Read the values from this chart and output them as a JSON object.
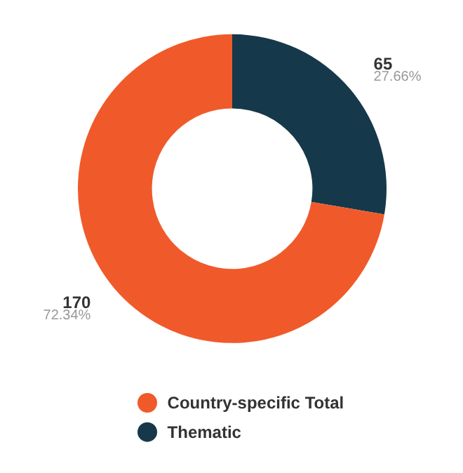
{
  "chart_data": {
    "type": "donut",
    "categories": [
      "Thematic",
      "Country-specific Total"
    ],
    "values": [
      65,
      170
    ],
    "colors": [
      "#15394a",
      "#f05a2a"
    ],
    "value_labels": [
      "65\n27.66%",
      "170\n72.34%"
    ],
    "legend": "bottom"
  }
}
